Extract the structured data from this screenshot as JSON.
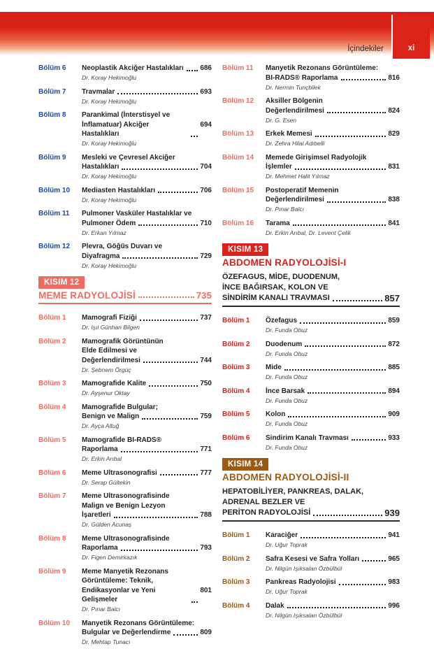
{
  "header": {
    "title": "İçindekiler",
    "page_label": "xi"
  },
  "colors": {
    "blue": "#1c4a9e",
    "salmon": "#ed6d62",
    "red": "#d8231e",
    "brown": "#9c5a12",
    "header_red": "#dc2319",
    "rule_dark": "#2f2a2b",
    "title_text": "#262122",
    "author_text": "#474142"
  },
  "columns": {
    "left": [
      {
        "kind": "entries",
        "color": "blue",
        "items": [
          {
            "label": "Bölüm 6",
            "lines": [
              "Neoplastik Akciğer Hastalıkları"
            ],
            "page": "686",
            "authors": "Dr. Koray Hekimoğlu"
          },
          {
            "label": "Bölüm 7",
            "lines": [
              "Travmalar"
            ],
            "page": "693",
            "authors": "Dr. Koray Hekimoğlu"
          },
          {
            "label": "Bölüm 8",
            "lines": [
              "Parankimal (İnterstisyel ve",
              "İnflamatuar) Akciğer Hastalıkları"
            ],
            "page": "694",
            "authors": "Dr. Koray Hekimoğlu"
          },
          {
            "label": "Bölüm 9",
            "lines": [
              "Mesleki ve Çevresel Akciğer",
              "Hastalıkları"
            ],
            "page": "704",
            "authors": "Dr. Koray Hekimoğlu"
          },
          {
            "label": "Bölüm 10",
            "lines": [
              "Mediasten Hastalıkları"
            ],
            "page": "706",
            "authors": "Dr. Koray Hekimoğlu"
          },
          {
            "label": "Bölüm 11",
            "lines": [
              "Pulmoner Vasküler Hastalıklar ve",
              "Pulmoner Ödem"
            ],
            "page": "710",
            "authors": "Dr. Erkan Yılmaz"
          },
          {
            "label": "Bölüm 12",
            "lines": [
              "Plevra, Göğüs Duvarı ve",
              "Diyafragma"
            ],
            "page": "729",
            "authors": "Dr. Koray Hekimoğlu"
          }
        ]
      },
      {
        "kind": "section",
        "color": "salmon",
        "badge": "KISIM 12",
        "title": "MEME RADYOLOJİSİ",
        "title_page": "735",
        "subtitle_lines": [],
        "subtitle_page": ""
      },
      {
        "kind": "entries",
        "color": "salmon",
        "items": [
          {
            "label": "Bölüm 1",
            "lines": [
              "Mamografi Fiziği"
            ],
            "page": "737",
            "authors": "Dr. Işıl Günhan Bilgen"
          },
          {
            "label": "Bölüm 2",
            "lines": [
              "Mamografik Görüntünün",
              "Elde Edilmesi ve",
              "Değerlendirilmesi"
            ],
            "page": "744",
            "authors": "Dr. Şebnem Örgüç"
          },
          {
            "label": "Bölüm 3",
            "lines": [
              "Mamografide Kalite"
            ],
            "page": "750",
            "authors": "Dr. Ayşenur Oktay"
          },
          {
            "label": "Bölüm 4",
            "lines": [
              "Mamografide Bulgular;",
              "Benign ve Malign"
            ],
            "page": "759",
            "authors": "Dr. Ayça Altuğ"
          },
          {
            "label": "Bölüm 5",
            "lines": [
              "Mamografide BI-RADS®",
              "Raporlama"
            ],
            "page": "771",
            "authors": "Dr. Erkin Arıbal"
          },
          {
            "label": "Bölüm 6",
            "lines": [
              "Meme Ultrasonografisi"
            ],
            "page": "777",
            "authors": "Dr. Serap Gültekin"
          },
          {
            "label": "Bölüm 7",
            "lines": [
              "Meme Ultrasonografisinde",
              "Malign ve Benign Lezyon",
              "İşaretleri"
            ],
            "page": "788",
            "authors": "Dr. Gülden Acunaş"
          },
          {
            "label": "Bölüm 8",
            "lines": [
              "Meme Ultrasonografisinde",
              "Raporlama"
            ],
            "page": "793",
            "authors": "Dr. Figen Demirkazık"
          },
          {
            "label": "Bölüm 9",
            "lines": [
              "Meme Manyetik Rezonans",
              "Görüntüleme: Teknik,",
              "Endikasyonlar ve Yeni Gelişmeler"
            ],
            "page": "801",
            "authors": "Dr. Pınar Balcı"
          },
          {
            "label": "Bölüm 10",
            "lines": [
              "Manyetik Rezonans Görüntüleme:",
              "Bulgular ve Değerlendirme"
            ],
            "page": "809",
            "authors": "Dr. Mehtap Tunacı"
          }
        ]
      }
    ],
    "right": [
      {
        "kind": "entries",
        "color": "salmon",
        "items": [
          {
            "label": "Bölüm 11",
            "lines": [
              "Manyetik Rezonans Görüntüleme:",
              "BI-RADS® Raporlama"
            ],
            "page": "816",
            "authors": "Dr. Nermin Tunçbilek"
          },
          {
            "label": "Bölüm 12",
            "lines": [
              "Aksiller Bölgenin",
              "Değerlendirilmesi"
            ],
            "page": "824",
            "authors": "Dr. G. Esen"
          },
          {
            "label": "Bölüm 13",
            "lines": [
              "Erkek Memesi"
            ],
            "page": "829",
            "authors": "Dr. Zehra Hilal Adıbelli"
          },
          {
            "label": "Bölüm 14",
            "lines": [
              "Memede Girişimsel Radyolojik",
              "İşlemler"
            ],
            "page": "831",
            "authors": "Dr. Mehmet Halit Yılmaz"
          },
          {
            "label": "Bölüm 15",
            "lines": [
              "Postoperatif Memenin",
              "Değerlendirilmesi"
            ],
            "page": "838",
            "authors": "Dr. Pınar Balcı"
          },
          {
            "label": "Bölüm 16",
            "lines": [
              "Tarama"
            ],
            "page": "841",
            "authors": "Dr. Erkin Arıbal, Dr. Levent Çelik"
          }
        ]
      },
      {
        "kind": "section",
        "color": "red",
        "badge": "KISIM 13",
        "title": "ABDOMEN RADYOLOJİSİ-I",
        "title_page": "",
        "subtitle_lines": [
          "ÖZEFAGUS, MİDE, DUODENUM,",
          "İNCE BAĞIRSAK, KOLON VE",
          "SİNDİRİM KANALI TRAVMASI"
        ],
        "subtitle_page": "857"
      },
      {
        "kind": "entries",
        "color": "red",
        "items": [
          {
            "label": "Bölüm 1",
            "lines": [
              "Özefagus"
            ],
            "page": "859",
            "authors": "Dr. Funda Obuz"
          },
          {
            "label": "Bölüm 2",
            "lines": [
              "Duodenum"
            ],
            "page": "872",
            "authors": "Dr. Funda Obuz"
          },
          {
            "label": "Bölüm 3",
            "lines": [
              "Mide"
            ],
            "page": "885",
            "authors": "Dr. Funda Obuz"
          },
          {
            "label": "Bölüm 4",
            "lines": [
              "İnce Barsak"
            ],
            "page": "894",
            "authors": "Dr. Funda Obuz"
          },
          {
            "label": "Bölüm 5",
            "lines": [
              "Kolon"
            ],
            "page": "909",
            "authors": "Dr. Funda Obuz"
          },
          {
            "label": "Bölüm 6",
            "lines": [
              "Sindirim Kanalı Travması"
            ],
            "page": "933",
            "authors": "Dr. Funda Obuz"
          }
        ]
      },
      {
        "kind": "section",
        "color": "brown",
        "badge": "KISIM 14",
        "title": "ABDOMEN RADYOLOJİSİ-II",
        "title_page": "",
        "subtitle_lines": [
          "HEPATOBİLİYER, PANKREAS, DALAK,",
          "ADRENAL BEZLER VE",
          "PERİTON RADYOLOJİSİ"
        ],
        "subtitle_page": "939"
      },
      {
        "kind": "entries",
        "color": "brown",
        "items": [
          {
            "label": "Bölüm 1",
            "lines": [
              "Karaciğer"
            ],
            "page": "941",
            "authors": "Dr. Uğur Toprak"
          },
          {
            "label": "Bölüm 2",
            "lines": [
              "Safra Kesesi ve Safra Yolları"
            ],
            "page": "965",
            "authors": "Dr. Nilgün Işıksalan Özbülbül"
          },
          {
            "label": "Bölüm 3",
            "lines": [
              "Pankreas Radyolojisi"
            ],
            "page": "983",
            "authors": "Dr. Uğur Toprak"
          },
          {
            "label": "Bölüm 4",
            "lines": [
              "Dalak"
            ],
            "page": "996",
            "authors": "Dr. Nilgün Işıksalan Özbülbül"
          }
        ]
      }
    ]
  }
}
